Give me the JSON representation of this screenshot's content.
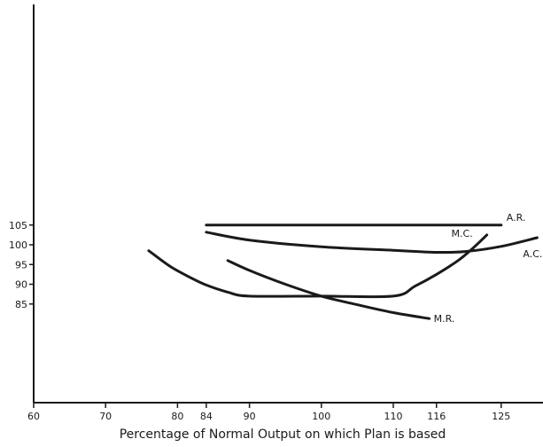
{
  "chart_data": {
    "type": "line",
    "title": "",
    "xlabel": "Percentage of Normal Output on which Plan is based",
    "ylabel": "",
    "xlim": [
      60,
      130
    ],
    "ylim": [
      60,
      110
    ],
    "grid": false,
    "x_ticks": [
      60,
      70,
      80,
      84,
      90,
      100,
      110,
      116,
      125
    ],
    "y_ticks": [
      85,
      90,
      95,
      100,
      105
    ],
    "series": [
      {
        "name": "A.R.",
        "label": "A.R.",
        "x": [
          84,
          125
        ],
        "y": [
          105,
          105
        ]
      },
      {
        "name": "A.C.",
        "label": "A.C.",
        "x": [
          84,
          90,
          100,
          110,
          116,
          120,
          125,
          130
        ],
        "y": [
          103.2,
          101.2,
          99.5,
          98.6,
          98.1,
          98.3,
          99.6,
          101.8
        ]
      },
      {
        "name": "M.C.",
        "label": "M.C.",
        "x": [
          76,
          79,
          82,
          84,
          87,
          90,
          100,
          110,
          113,
          116,
          119,
          121,
          123
        ],
        "y": [
          98.5,
          94.5,
          91.5,
          89.8,
          88,
          87,
          87,
          87,
          89.5,
          92.5,
          96,
          99,
          102.5
        ]
      },
      {
        "name": "M.R.",
        "label": "M.R.",
        "x": [
          87,
          90,
          95,
          100,
          105,
          110,
          115
        ],
        "y": [
          96,
          93.5,
          90,
          87,
          84.8,
          82.8,
          81.3
        ]
      }
    ]
  }
}
